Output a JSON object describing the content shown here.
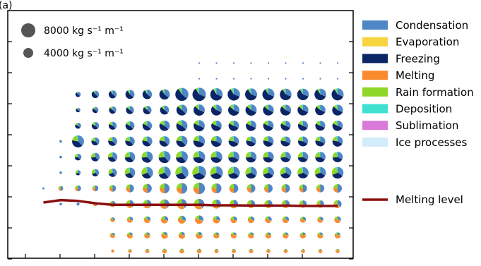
{
  "panel_label": "(a)",
  "colors": {
    "Condensation": "#4f86c6",
    "Evaporation": "#f7d540",
    "Freezing": "#0b2566",
    "Melting": "#f98a2e",
    "Rain formation": "#8fd728",
    "Deposition": "#3ee0d0",
    "Sublimation": "#d97ad9",
    "Ice processes": "#d3ecfb",
    "Melting level": "#8b0f0f"
  },
  "chart_data": {
    "type": "scatter",
    "subtype": "pie-glyph grid",
    "title": "",
    "xlabel": "",
    "ylabel": "",
    "size_legend": [
      {
        "label": "8000 kg s⁻¹ m⁻¹",
        "value": 8000
      },
      {
        "label": "4000 kg s⁻¹ m⁻¹",
        "value": 4000
      }
    ],
    "legend": [
      "Condensation",
      "Evaporation",
      "Freezing",
      "Melting",
      "Rain formation",
      "Deposition",
      "Sublimation",
      "Ice processes"
    ],
    "line_legend": "Melting level",
    "columns": 18,
    "rows": 15,
    "magnitude_rows": [
      [
        0,
        0,
        0,
        0,
        0,
        0,
        0,
        0,
        0,
        0,
        0,
        0,
        0,
        0,
        0,
        0,
        0,
        0
      ],
      [
        0,
        0,
        0,
        0,
        0,
        0,
        0,
        0,
        0,
        0,
        0,
        0,
        0,
        0,
        0,
        0,
        0,
        0
      ],
      [
        0,
        0,
        0,
        0,
        0,
        0,
        0,
        0,
        0,
        50,
        60,
        60,
        60,
        50,
        50,
        50,
        50,
        50
      ],
      [
        0,
        0,
        0,
        0,
        0,
        0,
        0,
        0,
        0,
        80,
        100,
        100,
        100,
        100,
        100,
        100,
        100,
        100
      ],
      [
        0,
        0,
        1200,
        2400,
        2800,
        3600,
        4000,
        4800,
        7600,
        8000,
        6800,
        6800,
        6400,
        6400,
        6000,
        6000,
        6000,
        6400
      ],
      [
        0,
        0,
        900,
        1600,
        2400,
        2800,
        3200,
        3600,
        5200,
        5600,
        5200,
        5600,
        5600,
        5200,
        5200,
        5200,
        4800,
        5200
      ],
      [
        0,
        0,
        1600,
        2400,
        2800,
        3600,
        4000,
        4800,
        5600,
        5600,
        4800,
        4800,
        4800,
        4800,
        4400,
        4400,
        4400,
        4800
      ],
      [
        0,
        300,
        6400,
        2800,
        3600,
        4000,
        4400,
        4800,
        5600,
        6000,
        5200,
        4800,
        4400,
        4800,
        4400,
        4400,
        4400,
        4800
      ],
      [
        0,
        300,
        2000,
        3200,
        4000,
        4800,
        5600,
        6400,
        6400,
        6400,
        6000,
        5600,
        5200,
        5200,
        4800,
        4800,
        4800,
        4800
      ],
      [
        0,
        300,
        1200,
        2400,
        3200,
        4800,
        6000,
        6800,
        7600,
        8400,
        7200,
        6400,
        6000,
        5600,
        5600,
        5600,
        5600,
        6000
      ],
      [
        200,
        1000,
        1600,
        1600,
        2000,
        2800,
        3600,
        4400,
        5200,
        6000,
        4400,
        3600,
        3200,
        3200,
        3200,
        2800,
        2800,
        3200
      ],
      [
        0,
        300,
        400,
        800,
        1600,
        2800,
        3200,
        4000,
        4400,
        4800,
        3600,
        3200,
        2800,
        2800,
        2800,
        2400,
        2400,
        2800
      ],
      [
        0,
        0,
        0,
        0,
        1000,
        1600,
        2000,
        2400,
        2800,
        3200,
        2400,
        2000,
        2000,
        2000,
        2000,
        1600,
        1600,
        2000
      ],
      [
        0,
        0,
        0,
        0,
        1200,
        1600,
        1600,
        2000,
        2000,
        2000,
        1600,
        1600,
        1600,
        1600,
        1600,
        1600,
        1600,
        1600
      ],
      [
        0,
        0,
        0,
        0,
        400,
        600,
        800,
        1000,
        1000,
        1000,
        800,
        800,
        800,
        700,
        700,
        700,
        700,
        700
      ]
    ],
    "melting_level_row_position": [
      10.9,
      10.75,
      10.8,
      10.95,
      11.05,
      11.05,
      11.05,
      11.05,
      11.05,
      11.05,
      11.08,
      11.08,
      11.1,
      11.1,
      11.1,
      11.12,
      11.12,
      11.12
    ]
  }
}
